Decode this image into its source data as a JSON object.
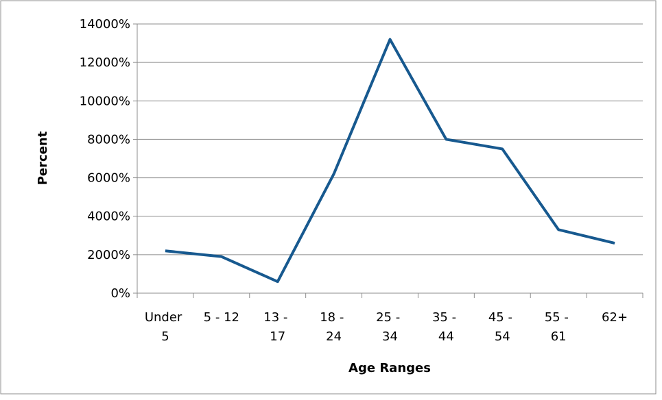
{
  "chart_data": {
    "type": "line",
    "x_label": "Age Ranges",
    "y_label": "Percent",
    "categories": [
      "Under 5",
      "5 - 12",
      "13 - 17",
      "18 - 24",
      "25 - 34",
      "35 - 44",
      "45 - 54",
      "55 - 61",
      "62+"
    ],
    "series": [
      {
        "color": "#17598f",
        "values": [
          2200,
          1900,
          600,
          6200,
          13200,
          8000,
          7500,
          3300,
          2600
        ]
      }
    ],
    "ylim": [
      0,
      14000
    ],
    "yticks": [
      {
        "value": 0,
        "label": "0%"
      },
      {
        "value": 2000,
        "label": "2000%"
      },
      {
        "value": 4000,
        "label": "4000%"
      },
      {
        "value": 6000,
        "label": "6000%"
      },
      {
        "value": 8000,
        "label": "8000%"
      },
      {
        "value": 10000,
        "label": "10000%"
      },
      {
        "value": 12000,
        "label": "12000%"
      },
      {
        "value": 14000,
        "label": "14000%"
      }
    ],
    "grid": true
  }
}
